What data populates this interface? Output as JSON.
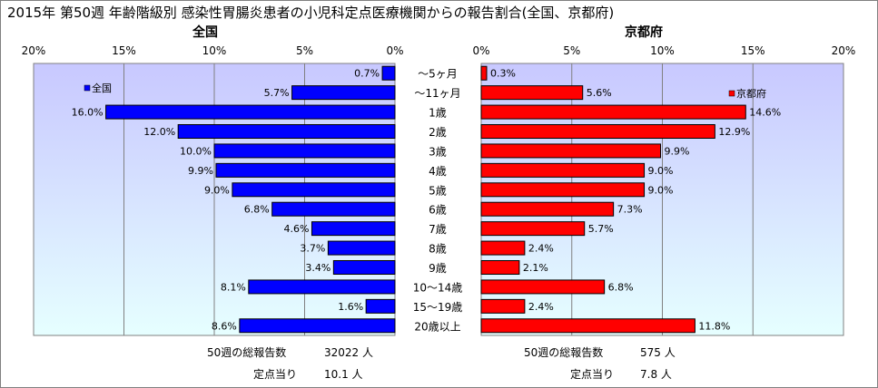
{
  "title": "2015年 第50週 年齢階級別 感染性胃腸炎患者の小児科定点医療機関からの報告割合(全国、京都府)",
  "chart_data": [
    {
      "type": "bar",
      "orientation": "horizontal-reversed",
      "title": "全国",
      "legend": "全国",
      "color": "#0000ff",
      "xlim": [
        0,
        20
      ],
      "ticks": [
        "20%",
        "15%",
        "10%",
        "5%",
        "0%"
      ],
      "categories": [
        "〜5ヶ月",
        "〜11ヶ月",
        "1歳",
        "2歳",
        "3歳",
        "4歳",
        "5歳",
        "6歳",
        "7歳",
        "8歳",
        "9歳",
        "10〜14歳",
        "15〜19歳",
        "20歳以上"
      ],
      "values": [
        0.7,
        5.7,
        16.0,
        12.0,
        10.0,
        9.9,
        9.0,
        6.8,
        4.6,
        3.7,
        3.4,
        8.1,
        1.6,
        8.6
      ],
      "labels": [
        "0.7%",
        "5.7%",
        "16.0%",
        "12.0%",
        "10.0%",
        "9.9%",
        "9.0%",
        "6.8%",
        "4.6%",
        "3.7%",
        "3.4%",
        "8.1%",
        "1.6%",
        "8.6%"
      ],
      "footer": {
        "total_label": "50週の総報告数",
        "total_value": "32022 人",
        "per_label": "定点当り",
        "per_value": "10.1 人"
      }
    },
    {
      "type": "bar",
      "orientation": "horizontal",
      "title": "京都府",
      "legend": "京都府",
      "color": "#ff0000",
      "xlim": [
        0,
        20
      ],
      "ticks": [
        "0%",
        "5%",
        "10%",
        "15%",
        "20%"
      ],
      "categories": [
        "〜5ヶ月",
        "〜11ヶ月",
        "1歳",
        "2歳",
        "3歳",
        "4歳",
        "5歳",
        "6歳",
        "7歳",
        "8歳",
        "9歳",
        "10〜14歳",
        "15〜19歳",
        "20歳以上"
      ],
      "values": [
        0.3,
        5.6,
        14.6,
        12.9,
        9.9,
        9.0,
        9.0,
        7.3,
        5.7,
        2.4,
        2.1,
        6.8,
        2.4,
        11.8
      ],
      "labels": [
        "0.3%",
        "5.6%",
        "14.6%",
        "12.9%",
        "9.9%",
        "9.0%",
        "9.0%",
        "7.3%",
        "5.7%",
        "2.4%",
        "2.1%",
        "6.8%",
        "2.4%",
        "11.8%"
      ],
      "footer": {
        "total_label": "50週の総報告数",
        "total_value": "575 人",
        "per_label": "定点当り",
        "per_value": "7.8 人"
      }
    }
  ]
}
